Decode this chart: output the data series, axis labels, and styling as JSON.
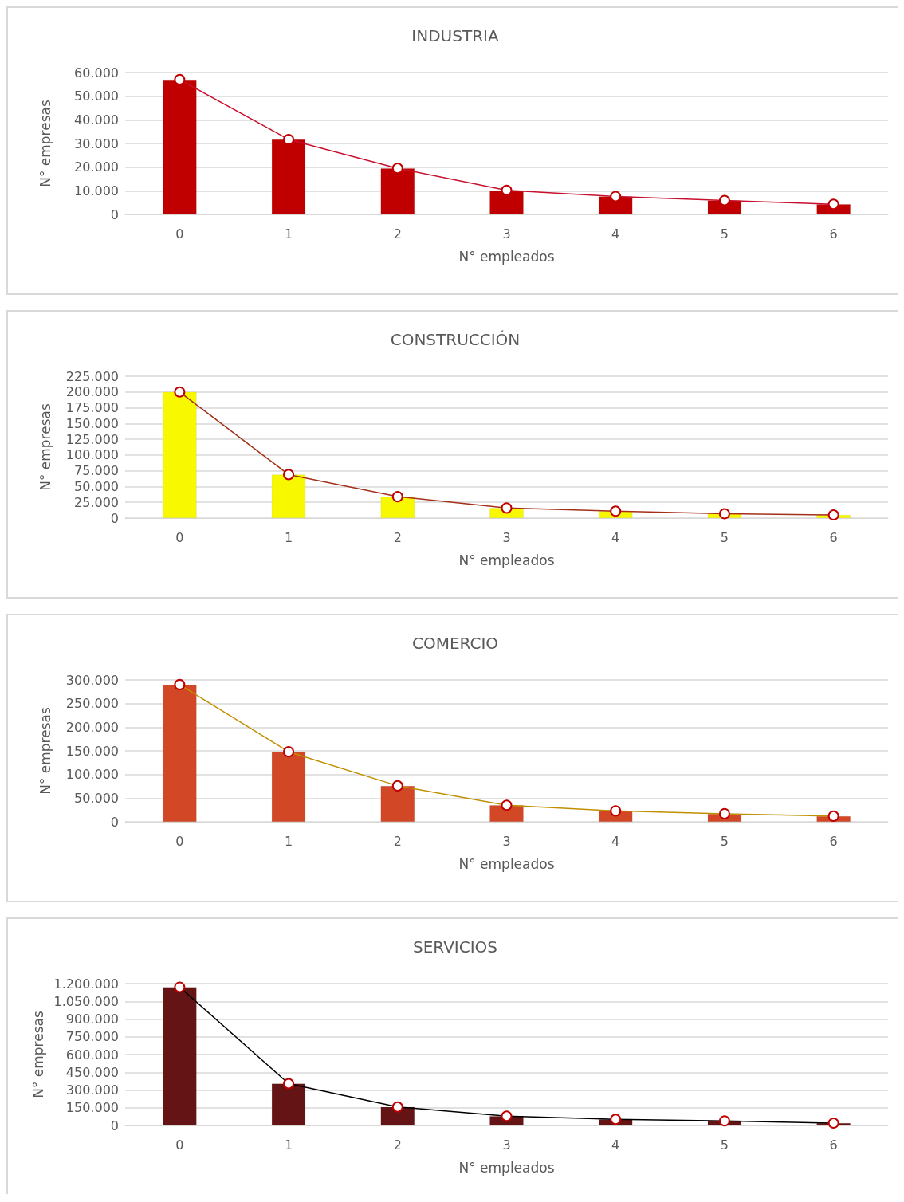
{
  "chart_data": [
    {
      "type": "bar",
      "title": "INDUSTRIA",
      "xlabel": "N° empleados",
      "ylabel": "N° empresas",
      "categories": [
        "0",
        "1",
        "2",
        "3",
        "4",
        "5",
        "6"
      ],
      "series": [
        {
          "color": "#c00000",
          "values": [
            57000,
            31700,
            19500,
            10200,
            7600,
            5900,
            4300
          ]
        },
        {
          "type": "line",
          "color": "#c8102e",
          "values": [
            57000,
            31700,
            19500,
            10200,
            7600,
            5900,
            4300
          ]
        }
      ],
      "ylim": [
        0,
        60000
      ],
      "yticks": [
        {
          "value": 0,
          "label": "0"
        },
        {
          "value": 10000,
          "label": "10.000"
        },
        {
          "value": 20000,
          "label": "20.000"
        },
        {
          "value": 30000,
          "label": "30.000"
        },
        {
          "value": 40000,
          "label": "40.000"
        },
        {
          "value": 50000,
          "label": "50.000"
        },
        {
          "value": 60000,
          "label": "60.000"
        }
      ],
      "grid": "y",
      "marker": "circle"
    },
    {
      "type": "bar",
      "title": "CONSTRUCCIÓN",
      "xlabel": "N° empleados",
      "ylabel": "N° empresas",
      "categories": [
        "0",
        "1",
        "2",
        "3",
        "4",
        "5",
        "6"
      ],
      "series": [
        {
          "color": "#f8f800",
          "values": [
            200000,
            69000,
            34000,
            16000,
            11000,
            7000,
            5000
          ]
        },
        {
          "type": "line",
          "color": "#a5301a",
          "values": [
            200000,
            69000,
            34000,
            16000,
            11000,
            7000,
            5000
          ]
        }
      ],
      "ylim": [
        0,
        225000
      ],
      "yticks": [
        {
          "value": 0,
          "label": "0"
        },
        {
          "value": 25000,
          "label": "25.000"
        },
        {
          "value": 50000,
          "label": "50.000"
        },
        {
          "value": 75000,
          "label": "75.000"
        },
        {
          "value": 100000,
          "label": "100.000"
        },
        {
          "value": 125000,
          "label": "125.000"
        },
        {
          "value": 150000,
          "label": "150.000"
        },
        {
          "value": 175000,
          "label": "175.000"
        },
        {
          "value": 200000,
          "label": "200.000"
        },
        {
          "value": 225000,
          "label": "225.000"
        }
      ],
      "grid": "y",
      "marker": "circle"
    },
    {
      "type": "bar",
      "title": "COMERCIO",
      "xlabel": "N° empleados",
      "ylabel": "N° empresas",
      "categories": [
        "0",
        "1",
        "2",
        "3",
        "4",
        "5",
        "6"
      ],
      "series": [
        {
          "color": "#d24726",
          "values": [
            290000,
            148000,
            76000,
            35000,
            23000,
            17000,
            12000
          ]
        },
        {
          "type": "line",
          "color": "#bf9000",
          "values": [
            290000,
            148000,
            76000,
            35000,
            23000,
            17000,
            12000
          ]
        }
      ],
      "ylim": [
        0,
        300000
      ],
      "yticks": [
        {
          "value": 0,
          "label": "0"
        },
        {
          "value": 50000,
          "label": "50.000"
        },
        {
          "value": 100000,
          "label": "100.000"
        },
        {
          "value": 150000,
          "label": "150.000"
        },
        {
          "value": 200000,
          "label": "200.000"
        },
        {
          "value": 250000,
          "label": "250.000"
        },
        {
          "value": 300000,
          "label": "300.000"
        }
      ],
      "grid": "y",
      "marker": "circle"
    },
    {
      "type": "bar",
      "title": "SERVICIOS",
      "xlabel": "N° empleados",
      "ylabel": "N° empresas",
      "categories": [
        "0",
        "1",
        "2",
        "3",
        "4",
        "5",
        "6"
      ],
      "series": [
        {
          "color": "#641414",
          "values": [
            1170000,
            354000,
            157000,
            79000,
            52000,
            39000,
            20000
          ]
        },
        {
          "type": "line",
          "color": "#000000",
          "values": [
            1170000,
            354000,
            157000,
            79000,
            52000,
            39000,
            20000
          ]
        }
      ],
      "ylim": [
        0,
        1200000
      ],
      "yticks": [
        {
          "value": 0,
          "label": "0"
        },
        {
          "value": 150000,
          "label": "150.000"
        },
        {
          "value": 300000,
          "label": "300.000"
        },
        {
          "value": 450000,
          "label": "450.000"
        },
        {
          "value": 600000,
          "label": "600.000"
        },
        {
          "value": 750000,
          "label": "750.000"
        },
        {
          "value": 900000,
          "label": "900.000"
        },
        {
          "value": 1050000,
          "label": "1.050.000"
        },
        {
          "value": 1200000,
          "label": "1.200.000"
        }
      ],
      "grid": "y",
      "marker": "circle"
    }
  ]
}
